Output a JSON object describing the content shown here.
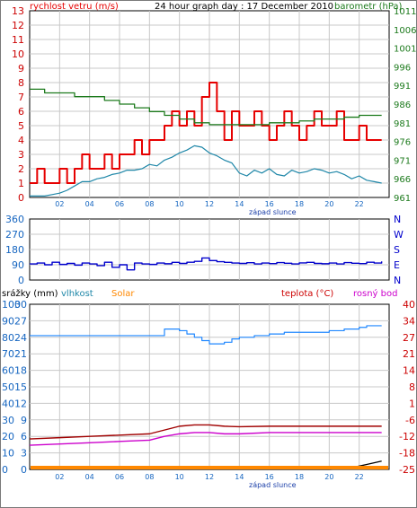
{
  "title": "24 hour graph day : 17 December 2010",
  "colors": {
    "wind": "#e60000",
    "gust": "#e60000",
    "wind_avg": "#1f87a8",
    "baro": "#1c7a1c",
    "direction": "#0000cc",
    "humidity": "#1f87ff",
    "temperature": "#a00000",
    "dewpoint": "#cc00cc",
    "solar": "#ff8800",
    "rain": "#000000",
    "grid": "#c8c8c8",
    "axis_blue": "#1565c0",
    "axis_red": "#cc0000"
  },
  "chart_data": [
    {
      "id": "wind-baro",
      "type": "line",
      "title": "24 hour graph day : 17 December 2010",
      "left_label": "rychlost vetru (m/s)",
      "right_label": "barometr (hPa)",
      "x_ticks": [
        "02",
        "04",
        "06",
        "08",
        "10",
        "12",
        "14",
        "16",
        "18",
        "20",
        "22"
      ],
      "x_note": "západ slunce",
      "y_left_ticks": [
        "0",
        "1",
        "2",
        "3",
        "4",
        "5",
        "6",
        "7",
        "8",
        "9",
        "10",
        "11",
        "12",
        "13"
      ],
      "y_right_ticks": [
        "961",
        "966",
        "971",
        "976",
        "981",
        "986",
        "991",
        "996",
        "1001",
        "1006",
        "1011"
      ],
      "ylim_left": [
        0,
        13
      ],
      "ylim_right": [
        961,
        1011
      ],
      "xlim": [
        0,
        24
      ],
      "series": [
        {
          "key": "gust",
          "x": [
            0,
            0.5,
            1,
            1.5,
            2,
            2.5,
            3,
            3.5,
            4,
            4.5,
            5,
            5.5,
            6,
            6.5,
            7,
            7.5,
            8,
            8.5,
            9,
            9.5,
            10,
            10.5,
            11,
            11.5,
            12,
            12.5,
            13,
            13.5,
            14,
            14.5,
            15,
            15.5,
            16,
            16.5,
            17,
            17.5,
            18,
            18.5,
            19,
            19.5,
            20,
            20.5,
            21,
            21.5,
            22,
            22.5,
            23,
            23.5
          ],
          "y": [
            1,
            2,
            1,
            1,
            2,
            1,
            2,
            3,
            2,
            2,
            3,
            2,
            3,
            3,
            4,
            3,
            4,
            4,
            5,
            6,
            5,
            6,
            5,
            7,
            8,
            6,
            4,
            6,
            5,
            5,
            6,
            5,
            4,
            5,
            6,
            5,
            4,
            5,
            6,
            5,
            5,
            6,
            4,
            4,
            5,
            4,
            4,
            4
          ]
        },
        {
          "key": "wind_avg",
          "x": [
            0,
            0.5,
            1,
            1.5,
            2,
            2.5,
            3,
            3.5,
            4,
            4.5,
            5,
            5.5,
            6,
            6.5,
            7,
            7.5,
            8,
            8.5,
            9,
            9.5,
            10,
            10.5,
            11,
            11.5,
            12,
            12.5,
            13,
            13.5,
            14,
            14.5,
            15,
            15.5,
            16,
            16.5,
            17,
            17.5,
            18,
            18.5,
            19,
            19.5,
            20,
            20.5,
            21,
            21.5,
            22,
            22.5,
            23,
            23.5
          ],
          "y": [
            0.1,
            0.1,
            0.1,
            0.2,
            0.3,
            0.5,
            0.8,
            1.1,
            1.1,
            1.3,
            1.4,
            1.6,
            1.7,
            1.9,
            1.9,
            2,
            2.3,
            2.2,
            2.6,
            2.8,
            3.1,
            3.3,
            3.6,
            3.5,
            3.1,
            2.9,
            2.6,
            2.4,
            1.7,
            1.5,
            1.9,
            1.7,
            2,
            1.6,
            1.5,
            1.9,
            1.7,
            1.8,
            2,
            1.9,
            1.7,
            1.8,
            1.6,
            1.3,
            1.5,
            1.2,
            1.1,
            1
          ]
        },
        {
          "key": "baro",
          "axis": "right",
          "x": [
            0,
            1,
            2,
            3,
            4,
            5,
            6,
            7,
            8,
            9,
            10,
            10.5,
            11,
            12,
            13,
            14,
            15,
            16,
            17,
            18,
            19,
            20,
            21,
            22,
            23,
            23.5
          ],
          "y": [
            990,
            989,
            989,
            988,
            988,
            987,
            986,
            985,
            984,
            983,
            982,
            982,
            981,
            980.5,
            980.5,
            980.5,
            980.5,
            981,
            981,
            981.5,
            982,
            982,
            982.5,
            983,
            983,
            983
          ]
        }
      ]
    },
    {
      "id": "direction",
      "type": "line",
      "left_ticks": [
        "0",
        "90",
        "180",
        "270",
        "360"
      ],
      "right_ticks": [
        "N",
        "E",
        "S",
        "W",
        "N"
      ],
      "ylim": [
        0,
        360
      ],
      "xlim": [
        0,
        24
      ],
      "series": [
        {
          "key": "direction",
          "x": [
            0,
            0.5,
            1,
            1.5,
            2,
            2.5,
            3,
            3.5,
            4,
            4.5,
            5,
            5.5,
            6,
            6.5,
            7,
            7.5,
            8,
            8.5,
            9,
            9.5,
            10,
            10.5,
            11,
            11.5,
            12,
            12.5,
            13,
            13.5,
            14,
            14.5,
            15,
            15.5,
            16,
            16.5,
            17,
            17.5,
            18,
            18.5,
            19,
            19.5,
            20,
            20.5,
            21,
            21.5,
            22,
            22.5,
            23,
            23.5
          ],
          "y": [
            95,
            100,
            90,
            105,
            92,
            98,
            88,
            100,
            95,
            85,
            105,
            75,
            90,
            60,
            100,
            95,
            92,
            100,
            96,
            104,
            98,
            105,
            110,
            130,
            115,
            108,
            104,
            100,
            98,
            102,
            95,
            100,
            97,
            103,
            99,
            95,
            101,
            104,
            98,
            96,
            100,
            95,
            103,
            99,
            97,
            105,
            100,
            110
          ]
        }
      ]
    },
    {
      "id": "climate",
      "type": "line",
      "labels": {
        "rain": "srážky (mm)",
        "humidity": "vlhkost",
        "solar": "Solar",
        "temperature": "teplota (°C)",
        "dewpoint": "rosný bod"
      },
      "x_ticks": [
        "02",
        "04",
        "06",
        "08",
        "10",
        "12",
        "14",
        "16",
        "18",
        "20",
        "22"
      ],
      "x_note": "západ slunce",
      "rain_ticks": [
        "0",
        "3",
        "6",
        "9",
        "12",
        "15",
        "18",
        "21",
        "24",
        "27",
        "30"
      ],
      "humidity_ticks": [
        "0",
        "10",
        "20",
        "30",
        "40",
        "50",
        "60",
        "70",
        "80",
        "90",
        "100"
      ],
      "temp_ticks": [
        "-25",
        "-18",
        "-12",
        "-6",
        "1",
        "8",
        "14",
        "21",
        "27",
        "34",
        "40"
      ],
      "ylim_rain": [
        0,
        30
      ],
      "ylim_humidity": [
        0,
        100
      ],
      "ylim_temp": [
        -25,
        40
      ],
      "xlim": [
        0,
        24
      ],
      "series": [
        {
          "key": "humidity",
          "axis": "humidity",
          "x": [
            0,
            2,
            4,
            6,
            8,
            8.6,
            9,
            9.5,
            10,
            10.5,
            11,
            11.5,
            12,
            12.5,
            13,
            13.5,
            14,
            15,
            16,
            17,
            18,
            19,
            20,
            21,
            22,
            22.5,
            23,
            23.5
          ],
          "y": [
            81,
            81,
            81,
            81,
            81,
            81,
            85,
            85,
            84,
            82,
            80,
            78,
            76,
            76,
            77,
            79,
            80,
            81,
            82,
            83,
            83,
            83,
            84,
            85,
            86,
            87,
            87,
            87
          ]
        },
        {
          "key": "temperature",
          "axis": "temp",
          "x": [
            0,
            2,
            4,
            6,
            8,
            9,
            10,
            11,
            12,
            13,
            14,
            16,
            18,
            20,
            22,
            23.5
          ],
          "y": [
            -13,
            -12.5,
            -12,
            -11.5,
            -11,
            -9.5,
            -8,
            -7.5,
            -7.5,
            -8,
            -8.2,
            -8,
            -8,
            -8,
            -8,
            -8
          ]
        },
        {
          "key": "dewpoint",
          "axis": "temp",
          "x": [
            0,
            2,
            4,
            6,
            8,
            9,
            10,
            11,
            12,
            13,
            14,
            16,
            18,
            20,
            22,
            23.5
          ],
          "y": [
            -15.5,
            -15,
            -14.5,
            -14,
            -13.5,
            -12,
            -11,
            -10.5,
            -10.5,
            -11,
            -11,
            -10.5,
            -10.5,
            -10.5,
            -10.5,
            -10.5
          ]
        },
        {
          "key": "rain",
          "axis": "rain",
          "x": [
            0,
            20,
            21,
            21.5,
            22,
            22.5,
            23,
            23.5
          ],
          "y": [
            0,
            0,
            0.1,
            0.3,
            0.6,
            0.9,
            1.2,
            1.5
          ]
        },
        {
          "key": "solar",
          "axis": "rain",
          "x": [
            0,
            23.5
          ],
          "y": [
            0.3,
            0.3
          ]
        }
      ]
    }
  ]
}
